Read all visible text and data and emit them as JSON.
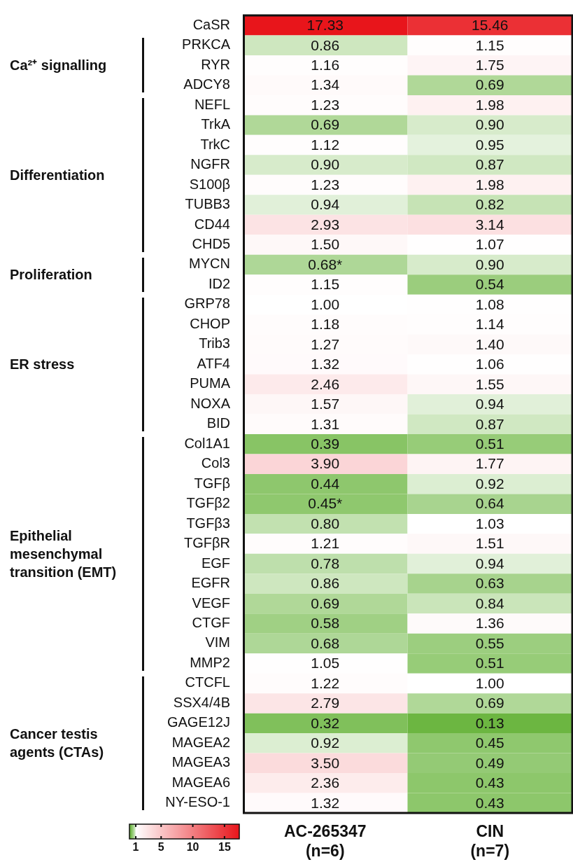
{
  "chart_data": {
    "type": "heatmap",
    "categories": [
      "AC-265347\n(n=6)",
      "CIN\n(n=7)"
    ],
    "y_categories": [
      "CaSR",
      "PRKCA",
      "RYR",
      "ADCY8",
      "NEFL",
      "TrkA",
      "TrkC",
      "NGFR",
      "S100β",
      "TUBB3",
      "CD44",
      "CHD5",
      "MYCN",
      "ID2",
      "GRP78",
      "CHOP",
      "Trib3",
      "ATF4",
      "PUMA",
      "NOXA",
      "BID",
      "Col1A1",
      "Col3",
      "TGFβ",
      "TGFβ2",
      "TGFβ3",
      "TGFβR",
      "EGF",
      "EGFR",
      "VEGF",
      "CTGF",
      "VIM",
      "MMP2",
      "CTCFL",
      "SSX4/4B",
      "GAGE12J",
      "MAGEA2",
      "MAGEA3",
      "MAGEA6",
      "NY-ESO-1"
    ],
    "cells": [
      [
        17.33,
        15.46
      ],
      [
        0.86,
        1.15
      ],
      [
        1.16,
        1.75
      ],
      [
        1.34,
        0.69
      ],
      [
        1.23,
        1.98
      ],
      [
        0.69,
        0.9
      ],
      [
        1.12,
        0.95
      ],
      [
        0.9,
        0.87
      ],
      [
        1.23,
        1.98
      ],
      [
        0.94,
        0.82
      ],
      [
        2.93,
        3.14
      ],
      [
        1.5,
        1.07
      ],
      [
        0.68,
        0.9
      ],
      [
        1.15,
        0.54
      ],
      [
        1.0,
        1.08
      ],
      [
        1.18,
        1.14
      ],
      [
        1.27,
        1.4
      ],
      [
        1.32,
        1.06
      ],
      [
        2.46,
        1.55
      ],
      [
        1.57,
        0.94
      ],
      [
        1.31,
        0.87
      ],
      [
        0.39,
        0.51
      ],
      [
        3.9,
        1.77
      ],
      [
        0.44,
        0.92
      ],
      [
        0.45,
        0.64
      ],
      [
        0.8,
        1.03
      ],
      [
        1.21,
        1.51
      ],
      [
        0.78,
        0.94
      ],
      [
        0.86,
        0.63
      ],
      [
        0.69,
        0.84
      ],
      [
        0.58,
        1.36
      ],
      [
        0.68,
        0.55
      ],
      [
        1.05,
        0.51
      ],
      [
        1.22,
        1.0
      ],
      [
        2.79,
        0.69
      ],
      [
        0.32,
        0.13
      ],
      [
        0.92,
        0.45
      ],
      [
        3.5,
        0.49
      ],
      [
        2.36,
        0.43
      ],
      [
        1.32,
        0.43
      ]
    ],
    "cell_labels": [
      [
        "17.33",
        "15.46"
      ],
      [
        "0.86",
        "1.15"
      ],
      [
        "1.16",
        "1.75"
      ],
      [
        "1.34",
        "0.69"
      ],
      [
        "1.23",
        "1.98"
      ],
      [
        "0.69",
        "0.90"
      ],
      [
        "1.12",
        "0.95"
      ],
      [
        "0.90",
        "0.87"
      ],
      [
        "1.23",
        "1.98"
      ],
      [
        "0.94",
        "0.82"
      ],
      [
        "2.93",
        "3.14"
      ],
      [
        "1.50",
        "1.07"
      ],
      [
        "0.68*",
        "0.90"
      ],
      [
        "1.15",
        "0.54"
      ],
      [
        "1.00",
        "1.08"
      ],
      [
        "1.18",
        "1.14"
      ],
      [
        "1.27",
        "1.40"
      ],
      [
        "1.32",
        "1.06"
      ],
      [
        "2.46",
        "1.55"
      ],
      [
        "1.57",
        "0.94"
      ],
      [
        "1.31",
        "0.87"
      ],
      [
        "0.39",
        "0.51"
      ],
      [
        "3.90",
        "1.77"
      ],
      [
        "0.44",
        "0.92"
      ],
      [
        "0.45*",
        "0.64"
      ],
      [
        "0.80",
        "1.03"
      ],
      [
        "1.21",
        "1.51"
      ],
      [
        "0.78",
        "0.94"
      ],
      [
        "0.86",
        "0.63"
      ],
      [
        "0.69",
        "0.84"
      ],
      [
        "0.58",
        "1.36"
      ],
      [
        "0.68",
        "0.55"
      ],
      [
        "1.05",
        "0.51"
      ],
      [
        "1.22",
        "1.00"
      ],
      [
        "2.79",
        "0.69"
      ],
      [
        "0.32",
        "0.13"
      ],
      [
        "0.92",
        "0.45"
      ],
      [
        "3.50",
        "0.49"
      ],
      [
        "2.36",
        "0.43"
      ],
      [
        "1.32",
        "0.43"
      ]
    ],
    "clim": [
      0,
      17.33
    ],
    "cticks": [
      1,
      5,
      10,
      15
    ],
    "annotations": [
      "Ca²⁺ signalling",
      "Differentiation",
      "Proliferation",
      "ER stress",
      "Epithelial\nmesenchymal\ntransition (EMT)",
      "Cancer testis\nagents (CTAs)"
    ]
  }
}
